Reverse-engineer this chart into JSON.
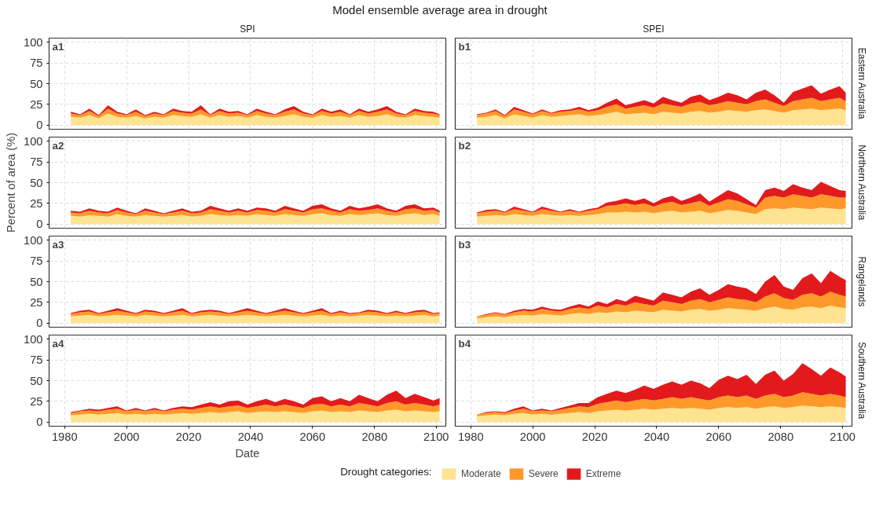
{
  "chart_data": [
    {
      "type": "area",
      "stacked": true,
      "title": "Model ensemble average area in drought",
      "subtitle": "SPI",
      "annotations": [
        "a1"
      ],
      "tick_labels": "y",
      "grid": true,
      "xlim": [
        1975,
        2103
      ],
      "ylim": [
        -5,
        105
      ],
      "xticks": [
        1980,
        2000,
        2020,
        2040,
        2060,
        2080,
        2100
      ],
      "yticks": [
        0,
        25,
        50,
        75,
        100
      ],
      "x": [
        1982,
        1985,
        1988,
        1991,
        1994,
        1997,
        2000,
        2003,
        2006,
        2009,
        2012,
        2015,
        2018,
        2021,
        2024,
        2027,
        2030,
        2033,
        2036,
        2039,
        2042,
        2045,
        2048,
        2051,
        2054,
        2057,
        2060,
        2063,
        2066,
        2069,
        2072,
        2075,
        2078,
        2081,
        2084,
        2087,
        2090,
        2093,
        2096,
        2099,
        2101
      ],
      "series": [
        {
          "color": "#fee391",
          "values": [
            10,
            9,
            12,
            8,
            14,
            10,
            9,
            11,
            8,
            10,
            9,
            12,
            11,
            10,
            13,
            9,
            12,
            10,
            11,
            9,
            12,
            10,
            9,
            11,
            13,
            10,
            9,
            12,
            10,
            11,
            9,
            12,
            10,
            11,
            13,
            10,
            9,
            12,
            11,
            10,
            9
          ]
        },
        {
          "color": "#fe9929",
          "values": [
            4,
            3,
            5,
            3,
            6,
            4,
            3,
            5,
            3,
            4,
            3,
            5,
            4,
            4,
            6,
            3,
            5,
            4,
            4,
            3,
            5,
            4,
            3,
            5,
            6,
            4,
            3,
            5,
            4,
            5,
            3,
            5,
            4,
            5,
            6,
            4,
            3,
            5,
            4,
            4,
            3
          ]
        },
        {
          "color": "#e31a1c",
          "values": [
            2,
            1,
            3,
            1,
            4,
            2,
            1,
            3,
            1,
            2,
            1,
            3,
            2,
            2,
            5,
            1,
            3,
            2,
            2,
            1,
            3,
            2,
            1,
            3,
            4,
            2,
            1,
            3,
            2,
            3,
            1,
            3,
            2,
            3,
            4,
            2,
            1,
            3,
            2,
            2,
            1
          ]
        }
      ]
    },
    {
      "type": "area",
      "stacked": true,
      "subtitle": "SPEI",
      "y2label": "Eastern Australia",
      "annotations": [
        "b1"
      ],
      "tick_labels": false,
      "grid": true,
      "xlim": [
        1975,
        2103
      ],
      "ylim": [
        -5,
        105
      ],
      "xticks": [
        1980,
        2000,
        2020,
        2040,
        2060,
        2080,
        2100
      ],
      "yticks": [
        0,
        25,
        50,
        75,
        100
      ],
      "x": [
        1982,
        1985,
        1988,
        1991,
        1994,
        1997,
        2000,
        2003,
        2006,
        2009,
        2012,
        2015,
        2018,
        2021,
        2024,
        2027,
        2030,
        2033,
        2036,
        2039,
        2042,
        2045,
        2048,
        2051,
        2054,
        2057,
        2060,
        2063,
        2066,
        2069,
        2072,
        2075,
        2078,
        2081,
        2084,
        2087,
        2090,
        2093,
        2096,
        2099,
        2101
      ],
      "series": [
        {
          "color": "#fee391",
          "values": [
            9,
            10,
            12,
            8,
            13,
            11,
            9,
            12,
            10,
            11,
            12,
            13,
            11,
            12,
            14,
            16,
            13,
            14,
            15,
            13,
            16,
            15,
            14,
            16,
            17,
            15,
            16,
            18,
            17,
            16,
            18,
            19,
            17,
            15,
            18,
            19,
            20,
            18,
            19,
            20,
            18
          ]
        },
        {
          "color": "#fe9929",
          "values": [
            3,
            4,
            5,
            3,
            6,
            5,
            4,
            5,
            4,
            5,
            5,
            6,
            5,
            6,
            8,
            9,
            7,
            8,
            9,
            8,
            10,
            9,
            8,
            10,
            11,
            9,
            10,
            11,
            10,
            9,
            11,
            12,
            10,
            8,
            11,
            12,
            13,
            11,
            12,
            13,
            11
          ]
        },
        {
          "color": "#e31a1c",
          "values": [
            1,
            1,
            2,
            1,
            3,
            2,
            1,
            2,
            1,
            2,
            2,
            3,
            2,
            3,
            5,
            7,
            4,
            5,
            6,
            5,
            8,
            6,
            5,
            8,
            9,
            6,
            8,
            10,
            9,
            6,
            10,
            12,
            9,
            4,
            11,
            13,
            15,
            9,
            12,
            14,
            10
          ]
        }
      ]
    },
    {
      "type": "area",
      "stacked": true,
      "ylabel": "Percent of area (%)",
      "annotations": [
        "a2"
      ],
      "tick_labels": "y",
      "grid": true,
      "xlim": [
        1975,
        2103
      ],
      "ylim": [
        -5,
        105
      ],
      "xticks": [
        1980,
        2000,
        2020,
        2040,
        2060,
        2080,
        2100
      ],
      "yticks": [
        0,
        25,
        50,
        75,
        100
      ],
      "x": [
        1982,
        1985,
        1988,
        1991,
        1994,
        1997,
        2000,
        2003,
        2006,
        2009,
        2012,
        2015,
        2018,
        2021,
        2024,
        2027,
        2030,
        2033,
        2036,
        2039,
        2042,
        2045,
        2048,
        2051,
        2054,
        2057,
        2060,
        2063,
        2066,
        2069,
        2072,
        2075,
        2078,
        2081,
        2084,
        2087,
        2090,
        2093,
        2096,
        2099,
        2101
      ],
      "series": [
        {
          "color": "#fee391",
          "values": [
            10,
            9,
            11,
            10,
            9,
            12,
            10,
            9,
            11,
            10,
            9,
            10,
            11,
            9,
            10,
            12,
            11,
            10,
            11,
            10,
            12,
            11,
            10,
            12,
            11,
            10,
            12,
            13,
            11,
            10,
            12,
            11,
            12,
            13,
            11,
            10,
            12,
            13,
            11,
            12,
            10
          ]
        },
        {
          "color": "#fe9929",
          "values": [
            4,
            4,
            5,
            4,
            4,
            5,
            4,
            3,
            5,
            4,
            3,
            4,
            5,
            4,
            4,
            6,
            5,
            4,
            5,
            4,
            5,
            5,
            4,
            6,
            5,
            4,
            6,
            6,
            5,
            4,
            6,
            5,
            5,
            6,
            5,
            4,
            6,
            6,
            5,
            5,
            4
          ]
        },
        {
          "color": "#e31a1c",
          "values": [
            2,
            2,
            3,
            2,
            2,
            3,
            2,
            1,
            3,
            2,
            1,
            2,
            3,
            2,
            2,
            4,
            3,
            2,
            3,
            2,
            3,
            3,
            2,
            4,
            3,
            2,
            4,
            5,
            3,
            2,
            4,
            3,
            4,
            5,
            3,
            2,
            4,
            5,
            3,
            3,
            2
          ]
        }
      ]
    },
    {
      "type": "area",
      "stacked": true,
      "y2label": "Northern Australia",
      "annotations": [
        "b2"
      ],
      "tick_labels": false,
      "grid": true,
      "xlim": [
        1975,
        2103
      ],
      "ylim": [
        -5,
        105
      ],
      "xticks": [
        1980,
        2000,
        2020,
        2040,
        2060,
        2080,
        2100
      ],
      "yticks": [
        0,
        25,
        50,
        75,
        100
      ],
      "x": [
        1982,
        1985,
        1988,
        1991,
        1994,
        1997,
        2000,
        2003,
        2006,
        2009,
        2012,
        2015,
        2018,
        2021,
        2024,
        2027,
        2030,
        2033,
        2036,
        2039,
        2042,
        2045,
        2048,
        2051,
        2054,
        2057,
        2060,
        2063,
        2066,
        2069,
        2072,
        2075,
        2078,
        2081,
        2084,
        2087,
        2090,
        2093,
        2096,
        2099,
        2101
      ],
      "series": [
        {
          "color": "#fee391",
          "values": [
            9,
            10,
            11,
            10,
            12,
            11,
            10,
            12,
            11,
            10,
            11,
            10,
            11,
            12,
            14,
            14,
            15,
            14,
            15,
            13,
            15,
            16,
            14,
            15,
            16,
            13,
            15,
            17,
            16,
            14,
            12,
            18,
            19,
            18,
            20,
            19,
            18,
            20,
            19,
            18,
            19
          ]
        },
        {
          "color": "#fe9929",
          "values": [
            4,
            5,
            5,
            4,
            6,
            5,
            4,
            6,
            5,
            4,
            5,
            4,
            5,
            6,
            8,
            9,
            10,
            9,
            10,
            8,
            10,
            11,
            9,
            10,
            12,
            9,
            11,
            13,
            12,
            10,
            8,
            14,
            15,
            14,
            16,
            15,
            14,
            16,
            15,
            14,
            13
          ]
        },
        {
          "color": "#e31a1c",
          "values": [
            1,
            2,
            2,
            1,
            3,
            2,
            1,
            3,
            2,
            1,
            2,
            1,
            2,
            2,
            4,
            5,
            6,
            5,
            6,
            4,
            6,
            7,
            5,
            7,
            9,
            5,
            8,
            11,
            9,
            6,
            3,
            9,
            10,
            8,
            12,
            10,
            9,
            15,
            12,
            9,
            8
          ]
        }
      ]
    },
    {
      "type": "area",
      "stacked": true,
      "annotations": [
        "a3"
      ],
      "tick_labels": "y",
      "grid": true,
      "xlim": [
        1975,
        2103
      ],
      "ylim": [
        -5,
        105
      ],
      "xticks": [
        1980,
        2000,
        2020,
        2040,
        2060,
        2080,
        2100
      ],
      "yticks": [
        0,
        25,
        50,
        75,
        100
      ],
      "x": [
        1982,
        1985,
        1988,
        1991,
        1994,
        1997,
        2000,
        2003,
        2006,
        2009,
        2012,
        2015,
        2018,
        2021,
        2024,
        2027,
        2030,
        2033,
        2036,
        2039,
        2042,
        2045,
        2048,
        2051,
        2054,
        2057,
        2060,
        2063,
        2066,
        2069,
        2072,
        2075,
        2078,
        2081,
        2084,
        2087,
        2090,
        2093,
        2096,
        2099,
        2101
      ],
      "series": [
        {
          "color": "#fee391",
          "values": [
            8,
            9,
            10,
            8,
            9,
            10,
            9,
            8,
            10,
            9,
            8,
            9,
            10,
            8,
            9,
            10,
            9,
            8,
            9,
            10,
            9,
            8,
            9,
            10,
            9,
            8,
            9,
            10,
            8,
            9,
            8,
            9,
            10,
            9,
            8,
            9,
            8,
            9,
            10,
            8,
            9
          ]
        },
        {
          "color": "#fe9929",
          "values": [
            3,
            4,
            4,
            3,
            4,
            5,
            4,
            3,
            4,
            4,
            3,
            4,
            5,
            3,
            4,
            4,
            4,
            3,
            4,
            5,
            4,
            3,
            4,
            5,
            4,
            3,
            4,
            5,
            3,
            4,
            3,
            3,
            4,
            4,
            3,
            4,
            3,
            4,
            4,
            3,
            3
          ]
        },
        {
          "color": "#e31a1c",
          "values": [
            1,
            2,
            2,
            1,
            2,
            3,
            2,
            1,
            2,
            2,
            1,
            2,
            3,
            1,
            2,
            2,
            2,
            1,
            2,
            3,
            2,
            1,
            2,
            3,
            2,
            1,
            2,
            3,
            1,
            2,
            1,
            1,
            2,
            2,
            1,
            2,
            1,
            2,
            2,
            1,
            1
          ]
        }
      ]
    },
    {
      "type": "area",
      "stacked": true,
      "y2label": "Rangelands",
      "annotations": [
        "b3"
      ],
      "tick_labels": false,
      "grid": true,
      "xlim": [
        1975,
        2103
      ],
      "ylim": [
        -5,
        105
      ],
      "xticks": [
        1980,
        2000,
        2020,
        2040,
        2060,
        2080,
        2100
      ],
      "yticks": [
        0,
        25,
        50,
        75,
        100
      ],
      "x": [
        1982,
        1985,
        1988,
        1991,
        1994,
        1997,
        2000,
        2003,
        2006,
        2009,
        2012,
        2015,
        2018,
        2021,
        2024,
        2027,
        2030,
        2033,
        2036,
        2039,
        2042,
        2045,
        2048,
        2051,
        2054,
        2057,
        2060,
        2063,
        2066,
        2069,
        2072,
        2075,
        2078,
        2081,
        2084,
        2087,
        2090,
        2093,
        2096,
        2099,
        2101
      ],
      "series": [
        {
          "color": "#fee391",
          "values": [
            6,
            7,
            8,
            7,
            9,
            10,
            9,
            11,
            10,
            9,
            11,
            12,
            11,
            13,
            12,
            14,
            13,
            15,
            14,
            13,
            16,
            15,
            14,
            16,
            17,
            15,
            16,
            18,
            17,
            16,
            15,
            18,
            20,
            17,
            16,
            19,
            20,
            18,
            21,
            19,
            18
          ]
        },
        {
          "color": "#fe9929",
          "values": [
            2,
            3,
            4,
            3,
            4,
            5,
            5,
            6,
            5,
            5,
            6,
            7,
            6,
            8,
            7,
            9,
            8,
            10,
            9,
            8,
            11,
            10,
            9,
            11,
            12,
            10,
            12,
            13,
            12,
            12,
            10,
            14,
            16,
            13,
            12,
            15,
            16,
            14,
            17,
            15,
            14
          ]
        },
        {
          "color": "#e31a1c",
          "values": [
            0,
            1,
            1,
            1,
            2,
            2,
            2,
            3,
            2,
            2,
            3,
            4,
            3,
            5,
            4,
            6,
            5,
            8,
            7,
            6,
            10,
            9,
            8,
            11,
            13,
            9,
            12,
            16,
            15,
            14,
            10,
            18,
            22,
            14,
            12,
            20,
            24,
            16,
            25,
            22,
            20
          ]
        }
      ]
    },
    {
      "type": "area",
      "stacked": true,
      "xlabel": "Date",
      "annotations": [
        "a4"
      ],
      "grid": true,
      "xlim": [
        1975,
        2103
      ],
      "ylim": [
        -5,
        105
      ],
      "xticks": [
        1980,
        2000,
        2020,
        2040,
        2060,
        2080,
        2100
      ],
      "yticks": [
        0,
        25,
        50,
        75,
        100
      ],
      "x": [
        1982,
        1985,
        1988,
        1991,
        1994,
        1997,
        2000,
        2003,
        2006,
        2009,
        2012,
        2015,
        2018,
        2021,
        2024,
        2027,
        2030,
        2033,
        2036,
        2039,
        2042,
        2045,
        2048,
        2051,
        2054,
        2057,
        2060,
        2063,
        2066,
        2069,
        2072,
        2075,
        2078,
        2081,
        2084,
        2087,
        2090,
        2093,
        2096,
        2099,
        2101
      ],
      "series": [
        {
          "color": "#fee391",
          "values": [
            8,
            9,
            10,
            9,
            10,
            11,
            9,
            10,
            9,
            10,
            9,
            10,
            11,
            10,
            11,
            12,
            11,
            12,
            13,
            11,
            12,
            13,
            12,
            13,
            12,
            11,
            13,
            14,
            12,
            13,
            12,
            14,
            13,
            12,
            14,
            15,
            13,
            14,
            13,
            12,
            13
          ]
        },
        {
          "color": "#fe9929",
          "values": [
            3,
            4,
            4,
            4,
            5,
            5,
            4,
            5,
            4,
            5,
            4,
            5,
            5,
            5,
            6,
            7,
            6,
            7,
            7,
            6,
            7,
            8,
            7,
            8,
            7,
            6,
            8,
            8,
            7,
            8,
            7,
            9,
            8,
            7,
            9,
            10,
            8,
            9,
            8,
            7,
            8
          ]
        },
        {
          "color": "#e31a1c",
          "values": [
            1,
            1,
            2,
            2,
            2,
            3,
            1,
            2,
            1,
            2,
            1,
            2,
            3,
            3,
            4,
            5,
            4,
            6,
            6,
            4,
            6,
            7,
            5,
            7,
            6,
            4,
            8,
            9,
            6,
            8,
            6,
            10,
            8,
            6,
            10,
            13,
            8,
            11,
            9,
            7,
            8
          ]
        }
      ]
    },
    {
      "type": "area",
      "stacked": true,
      "y2label": "Southern Australia",
      "annotations": [
        "b4"
      ],
      "tick_labels": "x",
      "grid": true,
      "legend": "bottom",
      "legend_title": "Drought categories:",
      "xlim": [
        1975,
        2103
      ],
      "ylim": [
        -5,
        105
      ],
      "xticks": [
        1980,
        2000,
        2020,
        2040,
        2060,
        2080,
        2100
      ],
      "yticks": [
        0,
        25,
        50,
        75,
        100
      ],
      "x": [
        1982,
        1985,
        1988,
        1991,
        1994,
        1997,
        2000,
        2003,
        2006,
        2009,
        2012,
        2015,
        2018,
        2021,
        2024,
        2027,
        2030,
        2033,
        2036,
        2039,
        2042,
        2045,
        2048,
        2051,
        2054,
        2057,
        2060,
        2063,
        2066,
        2069,
        2072,
        2075,
        2078,
        2081,
        2084,
        2087,
        2090,
        2093,
        2096,
        2099,
        2101
      ],
      "series": [
        {
          "name": "Moderate",
          "color": "#fee391",
          "values": [
            7,
            8,
            9,
            8,
            10,
            11,
            9,
            10,
            9,
            10,
            11,
            12,
            11,
            13,
            14,
            15,
            14,
            15,
            16,
            15,
            16,
            17,
            16,
            17,
            16,
            15,
            17,
            18,
            17,
            18,
            16,
            18,
            19,
            17,
            18,
            20,
            19,
            18,
            19,
            18,
            17
          ]
        },
        {
          "name": "Severe",
          "color": "#fe9929",
          "values": [
            2,
            3,
            3,
            3,
            4,
            5,
            4,
            4,
            4,
            5,
            6,
            7,
            7,
            9,
            10,
            11,
            10,
            11,
            12,
            11,
            12,
            13,
            12,
            13,
            12,
            11,
            13,
            14,
            13,
            14,
            12,
            14,
            15,
            13,
            14,
            16,
            15,
            14,
            15,
            14,
            13
          ]
        },
        {
          "name": "Extreme",
          "color": "#e31a1c",
          "values": [
            0,
            1,
            1,
            1,
            2,
            3,
            1,
            2,
            1,
            2,
            3,
            4,
            5,
            8,
            10,
            12,
            11,
            13,
            16,
            14,
            17,
            19,
            17,
            20,
            19,
            15,
            21,
            24,
            22,
            25,
            18,
            25,
            28,
            20,
            26,
            35,
            30,
            24,
            32,
            28,
            25
          ]
        }
      ]
    }
  ]
}
